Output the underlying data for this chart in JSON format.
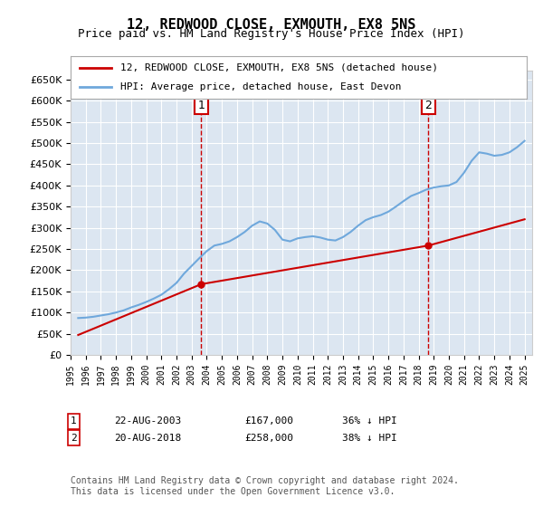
{
  "title": "12, REDWOOD CLOSE, EXMOUTH, EX8 5NS",
  "subtitle": "Price paid vs. HM Land Registry's House Price Index (HPI)",
  "ylabel": "",
  "background_color": "#dce6f1",
  "plot_bg_color": "#dce6f1",
  "yticks": [
    0,
    50000,
    100000,
    150000,
    200000,
    250000,
    300000,
    350000,
    400000,
    450000,
    500000,
    550000,
    600000,
    650000
  ],
  "ylim": [
    0,
    670000
  ],
  "xlim_start": 1995.0,
  "xlim_end": 2025.5,
  "xticks": [
    1995,
    1996,
    1997,
    1998,
    1999,
    2000,
    2001,
    2002,
    2003,
    2004,
    2005,
    2006,
    2007,
    2008,
    2009,
    2010,
    2011,
    2012,
    2013,
    2014,
    2015,
    2016,
    2017,
    2018,
    2019,
    2020,
    2021,
    2022,
    2023,
    2024,
    2025
  ],
  "hpi_line_color": "#6fa8dc",
  "price_line_color": "#cc0000",
  "vline_color": "#cc0000",
  "transaction1_x": 2003.64,
  "transaction1_y": 167000,
  "transaction2_x": 2018.64,
  "transaction2_y": 258000,
  "legend_line1": "12, REDWOOD CLOSE, EXMOUTH, EX8 5NS (detached house)",
  "legend_line2": "HPI: Average price, detached house, East Devon",
  "note1_num": "1",
  "note1_date": "22-AUG-2003",
  "note1_price": "£167,000",
  "note1_hpi": "36% ↓ HPI",
  "note2_num": "2",
  "note2_date": "20-AUG-2018",
  "note2_price": "£258,000",
  "note2_hpi": "38% ↓ HPI",
  "footer": "Contains HM Land Registry data © Crown copyright and database right 2024.\nThis data is licensed under the Open Government Licence v3.0.",
  "hpi_data_x": [
    1995.5,
    1996.0,
    1996.5,
    1997.0,
    1997.5,
    1998.0,
    1998.5,
    1999.0,
    1999.5,
    2000.0,
    2000.5,
    2001.0,
    2001.5,
    2002.0,
    2002.5,
    2003.0,
    2003.5,
    2004.0,
    2004.5,
    2005.0,
    2005.5,
    2006.0,
    2006.5,
    2007.0,
    2007.5,
    2008.0,
    2008.5,
    2009.0,
    2009.5,
    2010.0,
    2010.5,
    2011.0,
    2011.5,
    2012.0,
    2012.5,
    2013.0,
    2013.5,
    2014.0,
    2014.5,
    2015.0,
    2015.5,
    2016.0,
    2016.5,
    2017.0,
    2017.5,
    2018.0,
    2018.5,
    2019.0,
    2019.5,
    2020.0,
    2020.5,
    2021.0,
    2021.5,
    2022.0,
    2022.5,
    2023.0,
    2023.5,
    2024.0,
    2024.5,
    2025.0
  ],
  "hpi_data_y": [
    87000,
    88000,
    90000,
    93000,
    96000,
    100000,
    105000,
    112000,
    118000,
    125000,
    133000,
    142000,
    155000,
    170000,
    192000,
    210000,
    228000,
    245000,
    258000,
    262000,
    268000,
    278000,
    290000,
    305000,
    315000,
    310000,
    295000,
    272000,
    268000,
    275000,
    278000,
    280000,
    277000,
    272000,
    270000,
    278000,
    290000,
    305000,
    318000,
    325000,
    330000,
    338000,
    350000,
    363000,
    375000,
    382000,
    390000,
    395000,
    398000,
    400000,
    408000,
    430000,
    458000,
    478000,
    475000,
    470000,
    472000,
    478000,
    490000,
    505000
  ],
  "price_data_x": [
    1995.5,
    2003.64,
    2018.64,
    2025.0
  ],
  "price_data_y": [
    47000,
    167000,
    258000,
    320000
  ]
}
